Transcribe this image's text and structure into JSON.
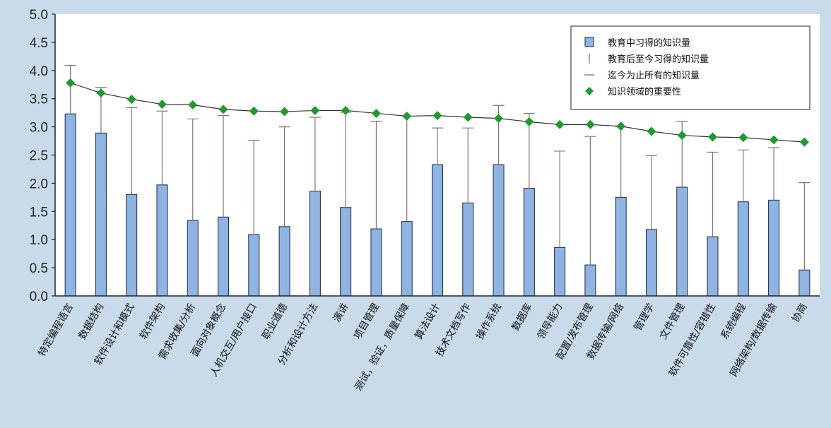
{
  "chart_data": {
    "type": "bar",
    "title": "",
    "xlabel": "",
    "ylabel": "",
    "ylim": [
      0,
      5
    ],
    "yticks": [
      "0.0",
      "0.5",
      "1.0",
      "1.5",
      "2.0",
      "2.5",
      "3.0",
      "3.5",
      "4.0",
      "4.5",
      "5.0"
    ],
    "grid": false,
    "legend_position": "top-right",
    "categories": [
      "特定编程语言",
      "数据结构",
      "软件设计和模式",
      "软件架构",
      "需求收集/分析",
      "面向对象概念",
      "人机交互/用户接口",
      "职业道德",
      "分析和设计方法",
      "演讲",
      "项目管理",
      "测试，验证，质量保障",
      "算法设计",
      "技术文档写作",
      "操作系统",
      "数据库",
      "领导能力",
      "配置/发布管理",
      "数据传输/网络",
      "管理学",
      "文件管理",
      "软件可靠性/容错性",
      "系统编程",
      "网络架构/数据传输",
      "协商"
    ],
    "series": [
      {
        "name": "教育中习得的知识量",
        "kind": "bar",
        "color": "#8fb3e2",
        "values": [
          3.23,
          2.89,
          1.8,
          1.97,
          1.34,
          1.4,
          1.09,
          1.23,
          1.86,
          1.57,
          1.19,
          1.32,
          2.33,
          1.65,
          2.33,
          1.91,
          0.86,
          0.55,
          1.75,
          1.18,
          1.93,
          1.05,
          1.67,
          1.7,
          0.46
        ]
      },
      {
        "name": "教育后至今习得的知识量",
        "kind": "error-bar",
        "color": "#8a7070",
        "values": [
          4.09,
          3.7,
          3.34,
          3.28,
          3.14,
          3.2,
          2.76,
          3.0,
          3.17,
          3.26,
          3.1,
          3.19,
          2.98,
          2.98,
          3.38,
          3.24,
          2.57,
          2.83,
          3.0,
          2.49,
          3.1,
          2.55,
          2.59,
          2.63,
          2.01
        ]
      },
      {
        "name": "迄今为止所有的知识量",
        "kind": "line",
        "color": "#333333",
        "values": [
          3.78,
          3.6,
          3.49,
          3.4,
          3.39,
          3.31,
          3.28,
          3.27,
          3.29,
          3.29,
          3.24,
          3.19,
          3.2,
          3.17,
          3.15,
          3.09,
          3.04,
          3.04,
          3.01,
          2.92,
          2.85,
          2.82,
          2.81,
          2.77,
          2.73
        ]
      },
      {
        "name": "知识领域的重要性",
        "kind": "marker",
        "color": "#1f9a2e",
        "values": [
          3.78,
          3.6,
          3.49,
          3.4,
          3.39,
          3.31,
          3.28,
          3.27,
          3.29,
          3.29,
          3.24,
          3.19,
          3.2,
          3.17,
          3.15,
          3.09,
          3.04,
          3.04,
          3.01,
          2.92,
          2.85,
          2.82,
          2.81,
          2.77,
          2.73
        ]
      }
    ]
  }
}
